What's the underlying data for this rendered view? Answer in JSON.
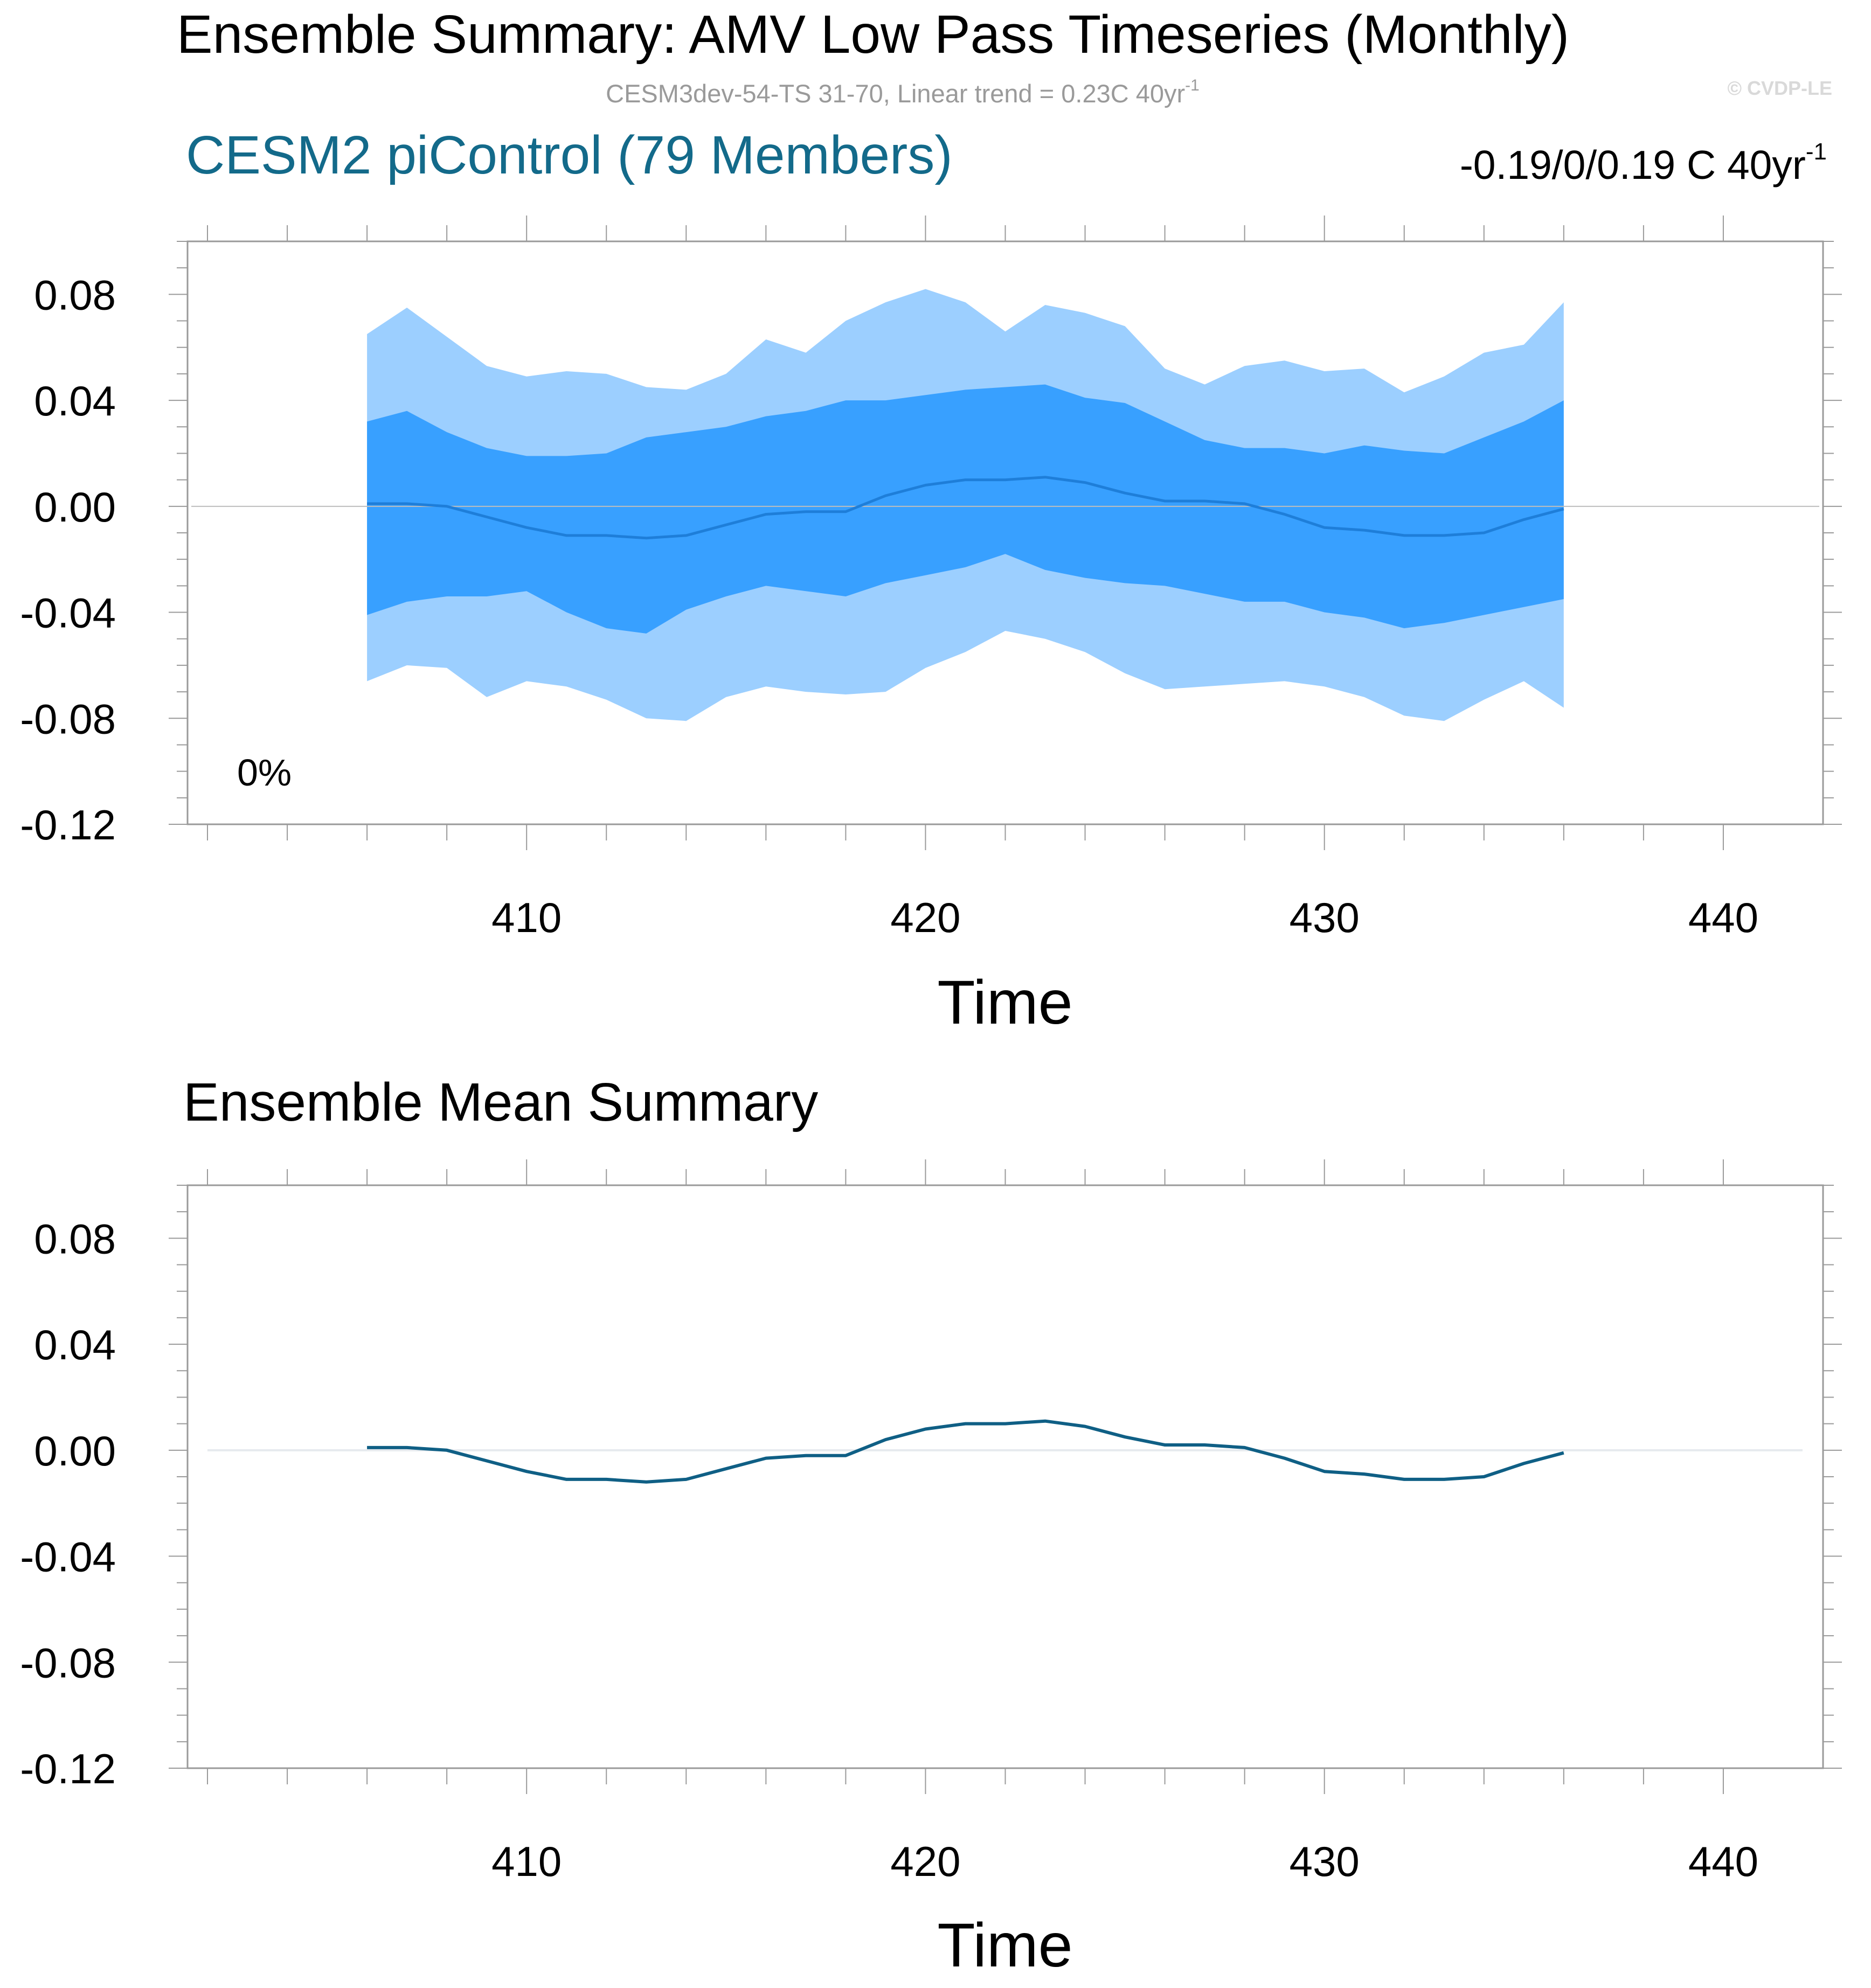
{
  "figure": {
    "title": "Ensemble Summary: AMV Low Pass Timeseries (Monthly)",
    "subtitle_main": "CESM3dev-54-TS 31-70, Linear trend = 0.23C 40yr",
    "subtitle_sup": "-1",
    "copyright": "© CVDP-LE"
  },
  "colors": {
    "dataset_title": "#136a8a",
    "outer_band": "#9ccfff",
    "inner_band": "#38a0ff",
    "band_mean_line": "#1e7ed9",
    "mean_line": "#0f5f85",
    "zero_line_top": "#bdbdbd",
    "zero_line_bottom": "#e6eaee",
    "frame": "#9a9a9a"
  },
  "chart_data": [
    {
      "type": "area",
      "name": "ensemble-spread",
      "left_title": "CESM2 piControl (79 Members)",
      "right_title_main": "-0.19/0/0.19 C 40yr",
      "right_title_sup": "-1",
      "annotation": "0%",
      "xlabel": "Time",
      "ylabel": "",
      "xlim": [
        401.5,
        442.5
      ],
      "ylim": [
        -0.12,
        0.1
      ],
      "xticks": [
        410,
        420,
        430,
        440
      ],
      "yticks": [
        0.08,
        0.04,
        0.0,
        -0.04,
        -0.08,
        -0.12
      ],
      "ytick_labels": [
        "0.08",
        "0.04",
        "0.00",
        "-0.04",
        "-0.08",
        "-0.12"
      ],
      "x": [
        406,
        407,
        408,
        409,
        410,
        411,
        412,
        413,
        414,
        415,
        416,
        417,
        418,
        419,
        420,
        421,
        422,
        423,
        424,
        425,
        426,
        427,
        428,
        429,
        430,
        431,
        432,
        433,
        434,
        435,
        436
      ],
      "series": [
        {
          "name": "max",
          "values": [
            0.065,
            0.075,
            0.064,
            0.053,
            0.049,
            0.051,
            0.05,
            0.045,
            0.044,
            0.05,
            0.063,
            0.058,
            0.07,
            0.077,
            0.082,
            0.077,
            0.066,
            0.076,
            0.073,
            0.068,
            0.052,
            0.046,
            0.053,
            0.055,
            0.051,
            0.052,
            0.043,
            0.049,
            0.058,
            0.061,
            0.077
          ]
        },
        {
          "name": "p90",
          "values": [
            0.032,
            0.036,
            0.028,
            0.022,
            0.019,
            0.019,
            0.02,
            0.026,
            0.028,
            0.03,
            0.034,
            0.036,
            0.04,
            0.04,
            0.042,
            0.044,
            0.045,
            0.046,
            0.041,
            0.039,
            0.032,
            0.025,
            0.022,
            0.022,
            0.02,
            0.023,
            0.021,
            0.02,
            0.026,
            0.032,
            0.04
          ]
        },
        {
          "name": "mean",
          "values": [
            0.001,
            0.001,
            0.0,
            -0.004,
            -0.008,
            -0.011,
            -0.011,
            -0.012,
            -0.011,
            -0.007,
            -0.003,
            -0.002,
            -0.002,
            0.004,
            0.008,
            0.01,
            0.01,
            0.011,
            0.009,
            0.005,
            0.002,
            0.002,
            0.001,
            -0.003,
            -0.008,
            -0.009,
            -0.011,
            -0.011,
            -0.01,
            -0.005,
            -0.001
          ]
        },
        {
          "name": "p10",
          "values": [
            -0.041,
            -0.036,
            -0.034,
            -0.034,
            -0.032,
            -0.04,
            -0.046,
            -0.048,
            -0.039,
            -0.034,
            -0.03,
            -0.032,
            -0.034,
            -0.029,
            -0.026,
            -0.023,
            -0.018,
            -0.024,
            -0.027,
            -0.029,
            -0.03,
            -0.033,
            -0.036,
            -0.036,
            -0.04,
            -0.042,
            -0.046,
            -0.044,
            -0.041,
            -0.038,
            -0.035
          ]
        },
        {
          "name": "min",
          "values": [
            -0.066,
            -0.06,
            -0.061,
            -0.072,
            -0.066,
            -0.068,
            -0.073,
            -0.08,
            -0.081,
            -0.072,
            -0.068,
            -0.07,
            -0.071,
            -0.07,
            -0.061,
            -0.055,
            -0.047,
            -0.05,
            -0.055,
            -0.063,
            -0.069,
            -0.068,
            -0.067,
            -0.066,
            -0.068,
            -0.072,
            -0.079,
            -0.081,
            -0.073,
            -0.066,
            -0.076
          ]
        }
      ]
    },
    {
      "type": "line",
      "name": "ensemble-mean",
      "left_title": "Ensemble Mean Summary",
      "xlabel": "Time",
      "ylabel": "",
      "xlim": [
        401.5,
        442.5
      ],
      "ylim": [
        -0.12,
        0.1
      ],
      "xticks": [
        410,
        420,
        430,
        440
      ],
      "yticks": [
        0.08,
        0.04,
        0.0,
        -0.04,
        -0.08,
        -0.12
      ],
      "ytick_labels": [
        "0.08",
        "0.04",
        "0.00",
        "-0.04",
        "-0.08",
        "-0.12"
      ],
      "x": [
        406,
        407,
        408,
        409,
        410,
        411,
        412,
        413,
        414,
        415,
        416,
        417,
        418,
        419,
        420,
        421,
        422,
        423,
        424,
        425,
        426,
        427,
        428,
        429,
        430,
        431,
        432,
        433,
        434,
        435,
        436
      ],
      "series": [
        {
          "name": "Ensemble Mean",
          "values": [
            0.001,
            0.001,
            0.0,
            -0.004,
            -0.008,
            -0.011,
            -0.011,
            -0.012,
            -0.011,
            -0.007,
            -0.003,
            -0.002,
            -0.002,
            0.004,
            0.008,
            0.01,
            0.01,
            0.011,
            0.009,
            0.005,
            0.002,
            0.002,
            0.001,
            -0.003,
            -0.008,
            -0.009,
            -0.011,
            -0.011,
            -0.01,
            -0.005,
            -0.001
          ]
        }
      ]
    }
  ]
}
